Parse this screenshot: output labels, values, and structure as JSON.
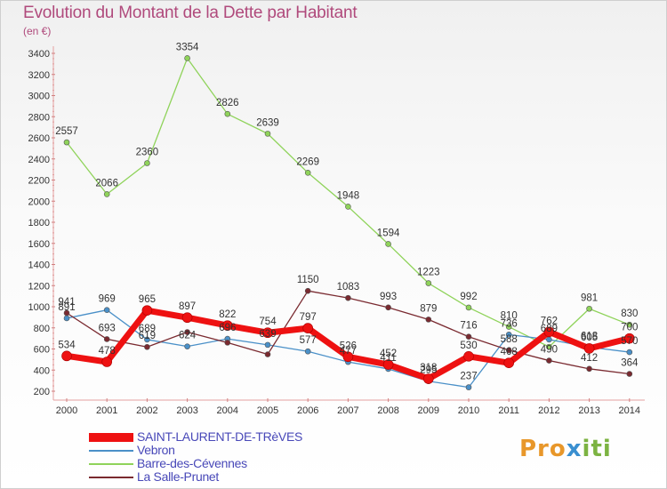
{
  "header": {
    "title": "Evolution du Montant de la Dette par Habitant",
    "unit": "(en €)"
  },
  "brand": {
    "part1": "Pro",
    "part2": "x",
    "part3": "iti"
  },
  "chart_data": {
    "type": "line",
    "title": "Evolution du Montant de la Dette par Habitant",
    "ylabel": "(en €)",
    "xlabel": "",
    "x": [
      "2000",
      "2001",
      "2002",
      "2003",
      "2004",
      "2005",
      "2006",
      "2007",
      "2008",
      "2009",
      "2010",
      "2011",
      "2012",
      "2013",
      "2014"
    ],
    "ylim": [
      200,
      3400
    ],
    "yticks": [
      200,
      400,
      600,
      800,
      1000,
      1200,
      1400,
      1600,
      1800,
      2000,
      2200,
      2400,
      2600,
      2800,
      3000,
      3200,
      3400
    ],
    "grid": false,
    "legend_position": "bottom-left",
    "series": [
      {
        "name": "SAINT-LAURENT-DE-TRèVES",
        "color": "#ee1111",
        "values": [
          534,
          478,
          965,
          897,
          822,
          754,
          797,
          526,
          452,
          318,
          530,
          468,
          762,
          605,
          700
        ],
        "labels": [
          "534",
          "478",
          "965",
          "897",
          "822",
          "754",
          "797",
          "526",
          "452",
          "318",
          "530",
          "468",
          "762",
          "605",
          "700"
        ]
      },
      {
        "name": "Vebron",
        "color": "#4a90c8",
        "values": [
          891,
          969,
          689,
          624,
          696,
          639,
          577,
          477,
          411,
          295,
          237,
          736,
          689,
          618,
          570
        ],
        "labels": [
          "891",
          "969",
          "689",
          "624",
          "696",
          "639",
          "577",
          "477",
          "411",
          "295",
          "237",
          "736",
          "689",
          "618",
          "570"
        ]
      },
      {
        "name": "Barre-des-Cévennes",
        "color": "#8fd35a",
        "values": [
          2557,
          2066,
          2360,
          3354,
          2826,
          2639,
          2269,
          1948,
          1594,
          1223,
          992,
          810,
          620,
          981,
          830
        ],
        "labels": [
          "2557",
          "2066",
          "2360",
          "3354",
          "2826",
          "2639",
          "2269",
          "1948",
          "1594",
          "1223",
          "992",
          "810",
          "",
          "981",
          "830"
        ]
      },
      {
        "name": "La Salle-Prunet",
        "color": "#7a2a30",
        "values": [
          941,
          693,
          619,
          760,
          660,
          549,
          1150,
          1083,
          993,
          879,
          716,
          588,
          490,
          412,
          364
        ],
        "labels": [
          "941",
          "693",
          "619",
          "",
          "",
          "",
          "1150",
          "1083",
          "993",
          "879",
          "716",
          "588",
          "490",
          "412",
          "364"
        ]
      }
    ]
  }
}
